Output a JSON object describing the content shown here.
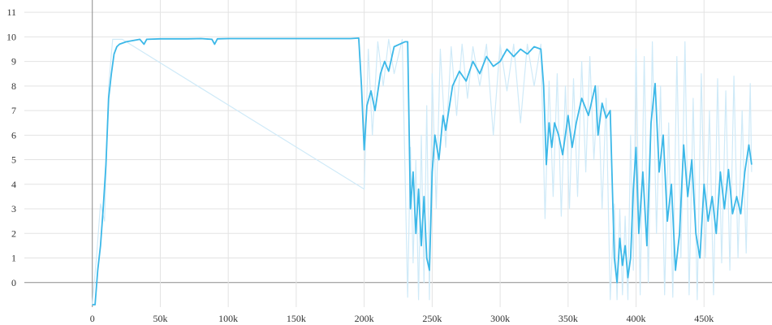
{
  "chart_data": {
    "type": "line",
    "title": "",
    "xlabel": "",
    "ylabel": "",
    "xlim": [
      -50000,
      500000
    ],
    "ylim": [
      -1,
      11.5
    ],
    "x_ticks": [
      0,
      50000,
      100000,
      150000,
      200000,
      250000,
      300000,
      350000,
      400000,
      450000
    ],
    "x_tick_labels": [
      "0",
      "50k",
      "100k",
      "150k",
      "200k",
      "250k",
      "300k",
      "350k",
      "400k",
      "450k"
    ],
    "y_ticks": [
      0,
      1,
      2,
      3,
      4,
      5,
      6,
      7,
      8,
      9,
      10,
      11
    ],
    "y_tick_labels": [
      "0",
      "1",
      "2",
      "3",
      "4",
      "5",
      "6",
      "7",
      "8",
      "9",
      "10",
      "11"
    ],
    "grid": true,
    "legend": "none",
    "colors": {
      "smoothed": "#3cb8e8",
      "raw": "#cfeaf8"
    },
    "series": [
      {
        "role": "smoothed",
        "x": [
          0,
          2000,
          4000,
          6000,
          8000,
          10000,
          12000,
          14000,
          16000,
          18000,
          20000,
          25000,
          30000,
          35000,
          38000,
          40000,
          50000,
          60000,
          70000,
          80000,
          88000,
          90000,
          92000,
          100000,
          120000,
          140000,
          160000,
          180000,
          190000,
          196000,
          198000,
          200000,
          202000,
          205000,
          208000,
          212000,
          215000,
          218000,
          222000,
          226000,
          230000,
          232000,
          234000,
          236000,
          238000,
          240000,
          242000,
          244000,
          246000,
          248000,
          250000,
          252000,
          255000,
          258000,
          260000,
          265000,
          270000,
          275000,
          280000,
          285000,
          290000,
          295000,
          300000,
          305000,
          310000,
          315000,
          320000,
          325000,
          330000,
          332000,
          334000,
          336000,
          338000,
          340000,
          343000,
          346000,
          350000,
          353000,
          356000,
          360000,
          365000,
          370000,
          372000,
          375000,
          378000,
          381000,
          384000,
          386000,
          388000,
          390000,
          392000,
          394000,
          396000,
          398000,
          400000,
          402000,
          405000,
          408000,
          411000,
          414000,
          417000,
          420000,
          423000,
          426000,
          429000,
          432000,
          435000,
          438000,
          441000,
          444000,
          447000,
          450000,
          453000,
          456000,
          459000,
          462000,
          465000,
          468000,
          471000,
          474000,
          477000,
          480000,
          483000,
          485000
        ],
        "y": [
          -0.9,
          -0.9,
          0.5,
          1.5,
          3.0,
          4.8,
          7.5,
          8.5,
          9.3,
          9.6,
          9.7,
          9.8,
          9.85,
          9.9,
          9.7,
          9.9,
          9.92,
          9.92,
          9.92,
          9.93,
          9.9,
          9.7,
          9.92,
          9.93,
          9.93,
          9.93,
          9.93,
          9.93,
          9.93,
          9.95,
          8.0,
          5.4,
          7.2,
          7.8,
          7.0,
          8.5,
          9.0,
          8.6,
          9.6,
          9.7,
          9.8,
          9.8,
          3.0,
          4.5,
          2.0,
          3.8,
          1.5,
          3.5,
          1.0,
          0.5,
          4.5,
          6.0,
          5.0,
          6.8,
          6.2,
          8.0,
          8.6,
          8.2,
          9.0,
          8.5,
          9.2,
          8.8,
          9.0,
          9.5,
          9.2,
          9.5,
          9.3,
          9.6,
          9.5,
          8.0,
          4.8,
          6.5,
          5.5,
          6.5,
          6.0,
          5.2,
          6.8,
          5.5,
          6.5,
          7.5,
          6.8,
          8.0,
          6.0,
          7.3,
          6.7,
          7.0,
          1.0,
          0.0,
          1.8,
          0.7,
          1.5,
          0.2,
          1.0,
          3.8,
          5.5,
          2.0,
          4.5,
          1.5,
          6.5,
          8.1,
          4.5,
          6.0,
          2.5,
          4.0,
          0.5,
          2.0,
          5.6,
          3.5,
          5.0,
          2.0,
          1.0,
          4.0,
          2.5,
          3.5,
          2.0,
          4.5,
          3.0,
          4.6,
          2.8,
          3.5,
          2.8,
          4.5,
          5.6,
          4.8
        ]
      },
      {
        "role": "raw",
        "x": [
          0,
          3000,
          6000,
          9000,
          12000,
          15000,
          18000,
          22000,
          200000,
          203000,
          206000,
          210000,
          214000,
          218000,
          222000,
          228000,
          232000,
          234000,
          236000,
          238000,
          240000,
          242000,
          244000,
          246000,
          248000,
          250000,
          253000,
          256000,
          260000,
          264000,
          268000,
          272000,
          276000,
          280000,
          285000,
          290000,
          295000,
          300000,
          305000,
          310000,
          315000,
          320000,
          325000,
          330000,
          333000,
          336000,
          339000,
          342000,
          345000,
          348000,
          351000,
          354000,
          357000,
          360000,
          363000,
          366000,
          369000,
          372000,
          375000,
          378000,
          381000,
          384000,
          386000,
          388000,
          390000,
          392000,
          394000,
          396000,
          398000,
          400000,
          403000,
          406000,
          409000,
          412000,
          415000,
          418000,
          421000,
          424000,
          427000,
          430000,
          433000,
          436000,
          439000,
          442000,
          445000,
          448000,
          451000,
          454000,
          457000,
          460000,
          463000,
          466000,
          469000,
          472000,
          475000,
          478000,
          481000,
          484000,
          485000
        ],
        "y": [
          -0.9,
          1.0,
          3.2,
          2.5,
          8.0,
          9.9,
          9.9,
          9.9,
          3.8,
          9.5,
          6.0,
          9.8,
          8.0,
          9.9,
          8.5,
          9.9,
          -0.6,
          5.5,
          0.8,
          5.0,
          -0.7,
          6.0,
          0.0,
          7.2,
          -0.7,
          8.5,
          3.0,
          9.5,
          5.5,
          9.6,
          6.8,
          9.7,
          7.5,
          9.6,
          8.0,
          9.7,
          6.0,
          9.7,
          7.8,
          9.7,
          6.5,
          9.7,
          8.0,
          9.7,
          2.6,
          8.2,
          3.5,
          8.5,
          2.7,
          8.0,
          3.0,
          8.3,
          3.5,
          9.0,
          4.5,
          9.2,
          5.0,
          8.0,
          3.0,
          7.5,
          -0.7,
          3.2,
          -0.7,
          3.0,
          -0.5,
          2.7,
          -0.7,
          6.0,
          0.5,
          9.5,
          -0.5,
          9.2,
          0.0,
          9.8,
          2.0,
          8.0,
          -0.5,
          6.5,
          -0.6,
          9.2,
          1.0,
          9.8,
          -0.5,
          7.5,
          -0.7,
          8.5,
          1.0,
          7.0,
          -0.5,
          8.3,
          0.8,
          7.8,
          0.5,
          8.4,
          1.0,
          7.0,
          1.2,
          8.1,
          4.5
        ]
      }
    ]
  }
}
